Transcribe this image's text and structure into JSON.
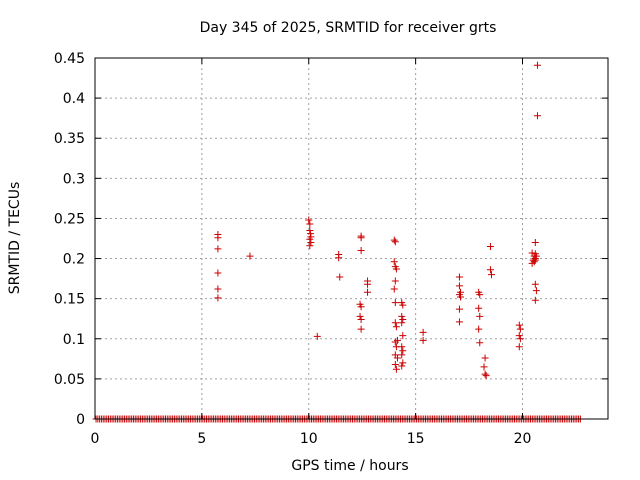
{
  "chart_data": {
    "type": "scatter",
    "title": "Day 345 of 2025, SRMTID for receiver grts",
    "xlabel": "GPS time / hours",
    "ylabel": "SRMTID / TECUs",
    "xlim": [
      0,
      24
    ],
    "ylim": [
      0,
      0.45
    ],
    "xticks": [
      0,
      5,
      10,
      15,
      20
    ],
    "xtick_labels": [
      "0",
      "5",
      "10",
      "15",
      "20"
    ],
    "yticks": [
      0,
      0.05,
      0.1,
      0.15,
      0.2,
      0.25,
      0.3,
      0.35,
      0.4,
      0.45
    ],
    "ytick_labels": [
      "0",
      "0.05",
      "0.1",
      "0.15",
      "0.2",
      "0.25",
      "0.3",
      "0.35",
      "0.4",
      "0.45"
    ],
    "grid": true,
    "marker": "+",
    "color": "#cc0000",
    "baseline": {
      "y": 0,
      "x_start": 0.05,
      "x_end": 22.75,
      "step": 0.0833
    },
    "points": [
      [
        5.75,
        0.23
      ],
      [
        5.75,
        0.226
      ],
      [
        5.75,
        0.212
      ],
      [
        5.75,
        0.182
      ],
      [
        5.75,
        0.162
      ],
      [
        5.75,
        0.151
      ],
      [
        7.25,
        0.203
      ],
      [
        10.0,
        0.248
      ],
      [
        10.05,
        0.243
      ],
      [
        10.05,
        0.235
      ],
      [
        10.08,
        0.231
      ],
      [
        10.1,
        0.227
      ],
      [
        10.05,
        0.224
      ],
      [
        10.1,
        0.22
      ],
      [
        10.05,
        0.216
      ],
      [
        10.4,
        0.103
      ],
      [
        11.4,
        0.205
      ],
      [
        11.4,
        0.201
      ],
      [
        11.45,
        0.177
      ],
      [
        12.45,
        0.228
      ],
      [
        12.45,
        0.226
      ],
      [
        12.45,
        0.21
      ],
      [
        12.4,
        0.143
      ],
      [
        12.45,
        0.14
      ],
      [
        12.4,
        0.128
      ],
      [
        12.45,
        0.124
      ],
      [
        12.45,
        0.112
      ],
      [
        12.75,
        0.172
      ],
      [
        12.75,
        0.168
      ],
      [
        12.75,
        0.158
      ],
      [
        14.0,
        0.223
      ],
      [
        14.05,
        0.221
      ],
      [
        14.0,
        0.196
      ],
      [
        14.05,
        0.19
      ],
      [
        14.1,
        0.187
      ],
      [
        14.05,
        0.172
      ],
      [
        14.0,
        0.162
      ],
      [
        14.05,
        0.145
      ],
      [
        14.05,
        0.12
      ],
      [
        14.1,
        0.115
      ],
      [
        14.15,
        0.098
      ],
      [
        14.05,
        0.096
      ],
      [
        14.1,
        0.09
      ],
      [
        14.05,
        0.08
      ],
      [
        14.15,
        0.076
      ],
      [
        14.05,
        0.068
      ],
      [
        14.1,
        0.062
      ],
      [
        14.35,
        0.145
      ],
      [
        14.4,
        0.142
      ],
      [
        14.35,
        0.128
      ],
      [
        14.4,
        0.124
      ],
      [
        14.35,
        0.12
      ],
      [
        14.4,
        0.104
      ],
      [
        14.35,
        0.09
      ],
      [
        14.4,
        0.085
      ],
      [
        14.35,
        0.08
      ],
      [
        14.4,
        0.07
      ],
      [
        14.35,
        0.066
      ],
      [
        15.35,
        0.108
      ],
      [
        15.35,
        0.098
      ],
      [
        17.05,
        0.177
      ],
      [
        17.05,
        0.166
      ],
      [
        17.1,
        0.158
      ],
      [
        17.05,
        0.155
      ],
      [
        17.1,
        0.152
      ],
      [
        17.05,
        0.137
      ],
      [
        17.05,
        0.121
      ],
      [
        17.95,
        0.158
      ],
      [
        18.0,
        0.155
      ],
      [
        17.95,
        0.138
      ],
      [
        18.0,
        0.128
      ],
      [
        17.95,
        0.112
      ],
      [
        18.0,
        0.095
      ],
      [
        18.25,
        0.076
      ],
      [
        18.2,
        0.065
      ],
      [
        18.25,
        0.056
      ],
      [
        18.3,
        0.054
      ],
      [
        18.5,
        0.215
      ],
      [
        18.5,
        0.186
      ],
      [
        18.55,
        0.18
      ],
      [
        19.85,
        0.117
      ],
      [
        19.9,
        0.112
      ],
      [
        19.85,
        0.104
      ],
      [
        19.9,
        0.1
      ],
      [
        19.85,
        0.09
      ],
      [
        20.45,
        0.207
      ],
      [
        20.55,
        0.203
      ],
      [
        20.6,
        0.2
      ],
      [
        20.5,
        0.198
      ],
      [
        20.55,
        0.196
      ],
      [
        20.45,
        0.194
      ],
      [
        20.6,
        0.22
      ],
      [
        20.6,
        0.206
      ],
      [
        20.65,
        0.203
      ],
      [
        20.6,
        0.198
      ],
      [
        20.6,
        0.168
      ],
      [
        20.65,
        0.16
      ],
      [
        20.6,
        0.148
      ],
      [
        20.7,
        0.441
      ],
      [
        20.7,
        0.378
      ]
    ]
  }
}
